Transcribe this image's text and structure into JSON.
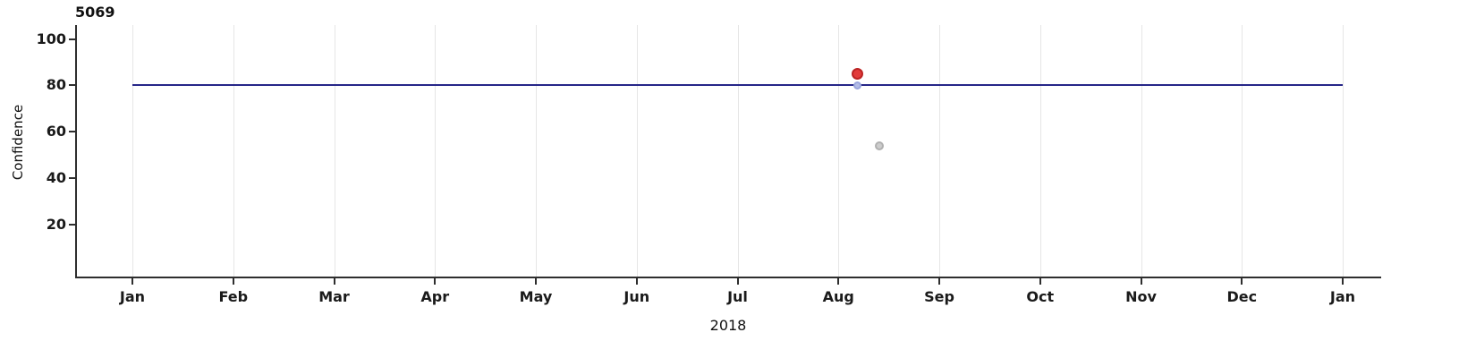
{
  "chart_data": {
    "type": "scatter",
    "title": "5069",
    "xlabel": "2018",
    "ylabel": "Confidence",
    "x_axis": {
      "tick_labels": [
        "Jan",
        "Feb",
        "Mar",
        "Apr",
        "May",
        "Jun",
        "Jul",
        "Aug",
        "Sep",
        "Oct",
        "Nov",
        "Dec",
        "Jan"
      ],
      "range_months": [
        0,
        12
      ]
    },
    "y_axis": {
      "ticks": [
        100,
        80,
        60,
        40,
        20
      ],
      "range": [
        -2.5,
        106
      ]
    },
    "grid": {
      "vertical": true,
      "horizontal": false,
      "color": "#e6e6e6"
    },
    "reference_line": {
      "y": 80,
      "color": "#262688"
    },
    "points": [
      {
        "label": "threshold-point",
        "x_month": 7.19,
        "y": 80,
        "fill": "#b4bce6",
        "stroke": "#9aa6dd",
        "size": 9
      },
      {
        "label": "confidence-point",
        "x_month": 7.19,
        "y": 85,
        "fill": "#e23b3b",
        "stroke": "#bc2424",
        "size": 13
      },
      {
        "label": "secondary-point",
        "x_month": 7.41,
        "y": 54,
        "fill": "#cccccc",
        "stroke": "#b0b0b0",
        "size": 10
      }
    ],
    "axis_color": "#2e2e2e"
  }
}
